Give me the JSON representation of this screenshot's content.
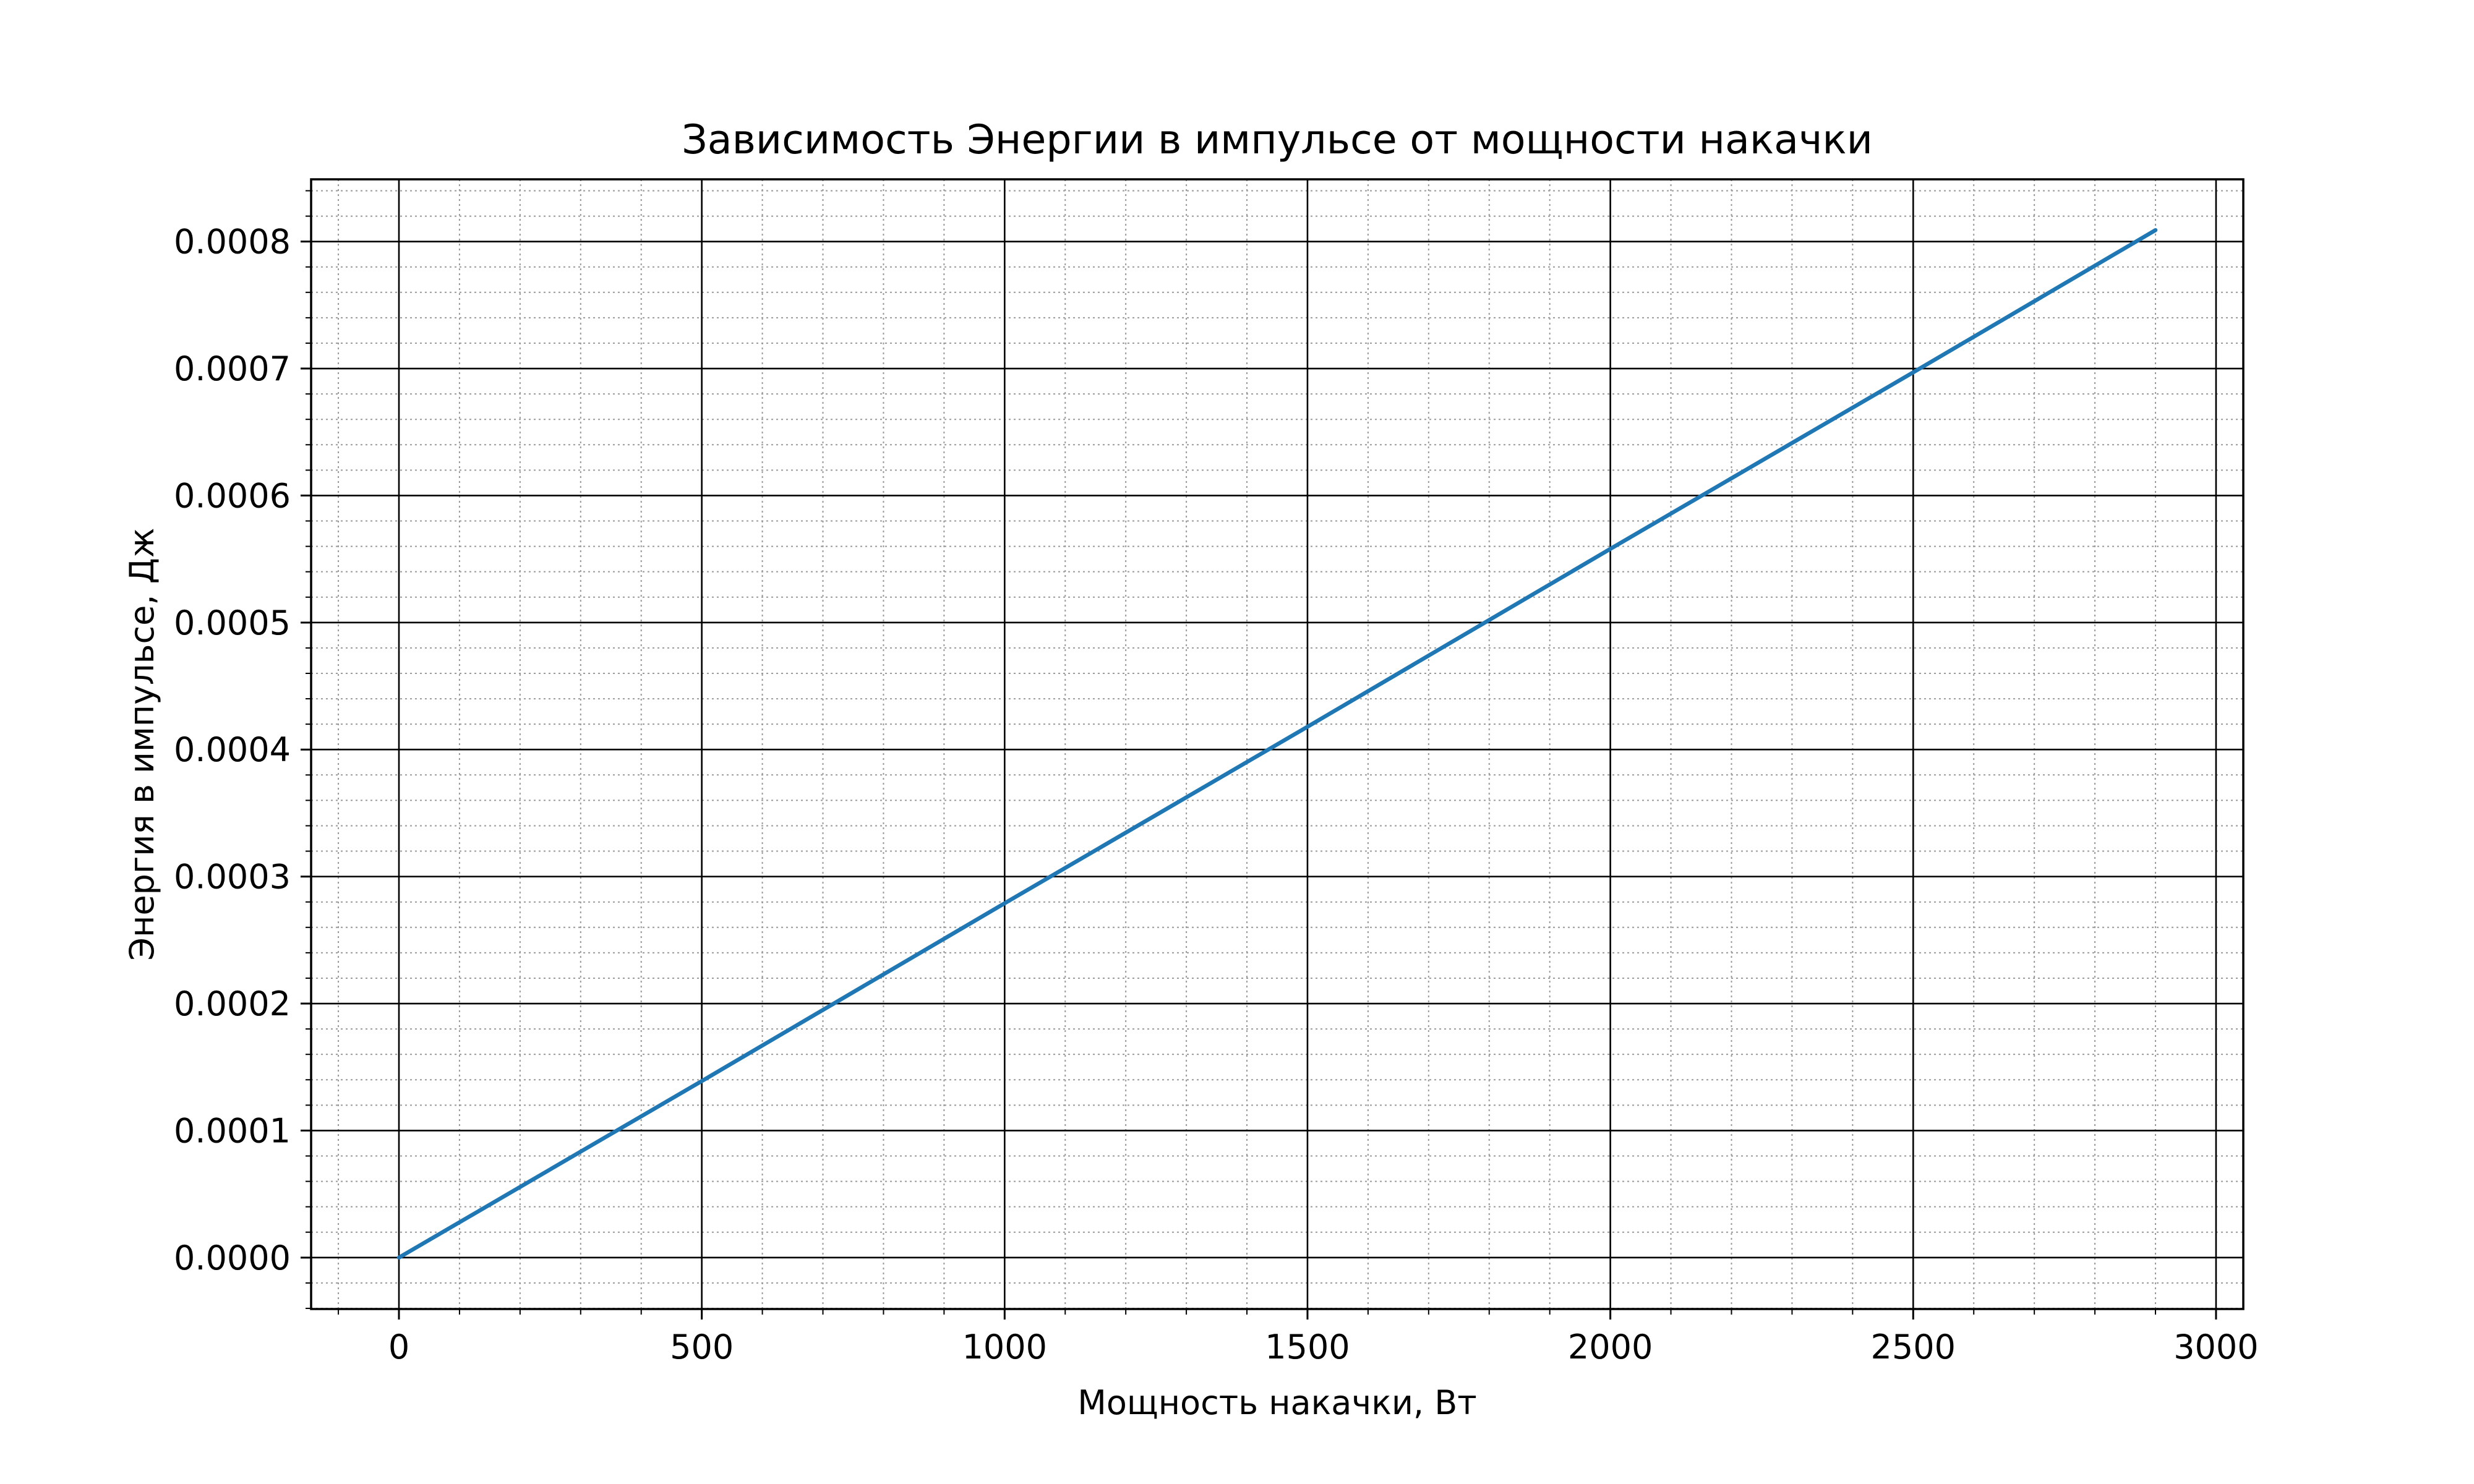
{
  "chart_data": {
    "type": "line",
    "title": "Зависимость Энергии в импульсе от мощности накачки",
    "xlabel": "Мощность накачки, Вт",
    "ylabel": "Энергия в импульсе, Дж",
    "xlim": [
      -145,
      3045
    ],
    "ylim": [
      -4.05e-05,
      0.000849
    ],
    "x_ticks": [
      0,
      500,
      1000,
      1500,
      2000,
      2500,
      3000
    ],
    "x_tick_labels": [
      "0",
      "500",
      "1000",
      "1500",
      "2000",
      "2500",
      "3000"
    ],
    "y_ticks": [
      0,
      0.0001,
      0.0002,
      0.0003,
      0.0004,
      0.0005,
      0.0006,
      0.0007,
      0.0008
    ],
    "y_tick_labels": [
      "0.0000",
      "0.0001",
      "0.0002",
      "0.0003",
      "0.0004",
      "0.0005",
      "0.0006",
      "0.0007",
      "0.0008"
    ],
    "x_minor_step": 100,
    "y_minor_step": 2e-05,
    "grid": true,
    "minor_grid": true,
    "series": [
      {
        "color": "#1f77b4",
        "x": [
          0,
          500,
          1000,
          1500,
          2000,
          2500,
          2900
        ],
        "y": [
          0,
          0.000139,
          0.000279,
          0.000418,
          0.000558,
          0.000697,
          0.000809
        ]
      }
    ]
  }
}
